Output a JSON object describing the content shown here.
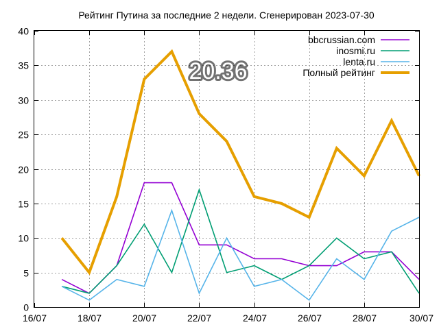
{
  "chart_data": {
    "type": "line",
    "title": "Рейтинг Путина за последние 2 недели. Сгенерирован 2023-07-30",
    "x_ticks": [
      "16/07",
      "18/07",
      "20/07",
      "22/07",
      "24/07",
      "26/07",
      "28/07",
      "30/07"
    ],
    "x_dates": [
      "2023-07-17",
      "2023-07-18",
      "2023-07-19",
      "2023-07-20",
      "2023-07-21",
      "2023-07-22",
      "2023-07-23",
      "2023-07-24",
      "2023-07-25",
      "2023-07-26",
      "2023-07-27",
      "2023-07-28",
      "2023-07-29",
      "2023-07-30"
    ],
    "xlim": [
      "2023-07-16",
      "2023-07-30"
    ],
    "ylim": [
      0,
      40
    ],
    "y_ticks": [
      "0",
      "5",
      "10",
      "15",
      "20",
      "25",
      "30",
      "35",
      "40"
    ],
    "grid": true,
    "legend_position": "top-right",
    "annotation": "20.36",
    "series": [
      {
        "name": "bbcrussian.com",
        "color": "#9400d3",
        "values": [
          4,
          2,
          6,
          18,
          18,
          9,
          9,
          7,
          7,
          6,
          6,
          8,
          8,
          4
        ]
      },
      {
        "name": "inosmi.ru",
        "color": "#009e73",
        "values": [
          3,
          2,
          6,
          12,
          5,
          17,
          5,
          6,
          4,
          6,
          10,
          7,
          8,
          2
        ]
      },
      {
        "name": "lenta.ru",
        "color": "#56b4e9",
        "values": [
          3,
          1,
          4,
          3,
          14,
          2,
          10,
          3,
          4,
          1,
          7,
          4,
          11,
          13
        ]
      },
      {
        "name": "Полный рейтинг",
        "color": "#e69f00",
        "values": [
          10,
          5,
          16,
          33,
          37,
          28,
          24,
          16,
          15,
          13,
          23,
          19,
          27,
          19
        ]
      }
    ]
  }
}
